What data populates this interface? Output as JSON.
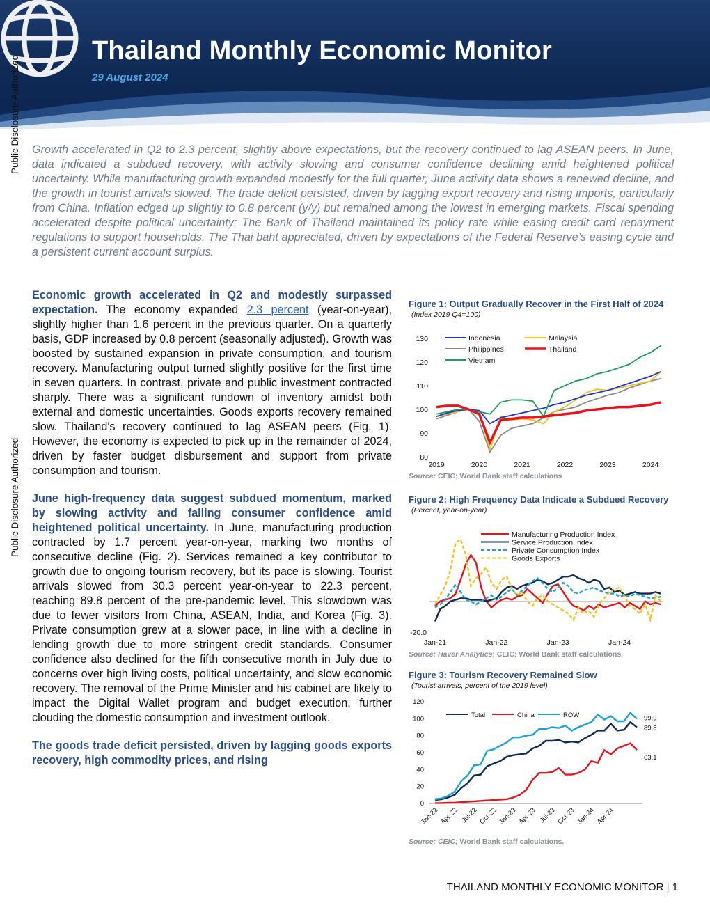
{
  "header": {
    "title": "Thailand Monthly Economic Monitor",
    "date": "29 August 2024"
  },
  "side_label": "Public Disclosure Authorized",
  "summary": "Growth accelerated in Q2 to 2.3 percent, slightly above expectations, but the recovery continued to lag ASEAN peers. In June, data indicated a subdued recovery, with activity slowing and consumer confidence declining amid heightened political uncertainty. While manufacturing growth expanded modestly for the full quarter, June activity data shows a renewed decline, and the growth in tourist arrivals slowed. The trade deficit persisted, driven by lagging export recovery and rising imports, particularly from China. Inflation edged up slightly to 0.8 percent (y/y) but remained among the lowest in emerging markets. Fiscal spending accelerated despite political uncertainty; The Bank of Thailand maintained its policy rate while easing credit card repayment regulations to support households. The Thai baht appreciated, driven by expectations of the Federal Reserve’s easing cycle and a persistent current account surplus.",
  "paragraphs": {
    "p1_lead": "Economic growth accelerated in Q2 and modestly surpassed expectation.",
    "p1_a": " The economy expanded ",
    "p1_link": "2.3 percent",
    "p1_b": " (year-on-year), slightly higher than 1.6 percent in the previous quarter. On a quarterly basis, GDP increased by 0.8 percent (seasonally adjusted). Growth was boosted by sustained expansion in private consumption, and tourism recovery. Manufacturing output turned slightly positive for the first time in seven quarters. In contrast, private and public investment contracted sharply. There was a significant rundown of inventory amidst both external and domestic uncertainties. Goods exports recovery remained slow. Thailand's recovery continued to lag ASEAN peers (Fig. 1). However, the economy is expected to pick up in the remainder of 2024, driven by faster budget disbursement and support from private consumption and tourism.",
    "p2_lead": "June high-frequency data suggest subdued momentum, marked by slowing activity and falling consumer confidence amid heightened political uncertainty.",
    "p2_body": " In June, manufacturing production contracted by 1.7 percent year-on-year, marking two months of consecutive decline (Fig. 2). Services remained a key contributor to growth due to ongoing tourism recovery, but its pace is slowing. Tourist arrivals slowed from 30.3 percent year-on-year to 22.3 percent, reaching 89.8 percent of the pre-pandemic level. This slowdown was due to fewer visitors from China, ASEAN, India, and Korea (Fig. 3). Private consumption grew at a slower pace, in line with a decline in lending growth due to more stringent credit standards. Consumer confidence also declined for the fifth consecutive month in July due to concerns over high living costs, political uncertainty, and slow economic recovery. The removal of the Prime Minister and his cabinet are likely to impact the Digital Wallet program and budget execution, further clouding the domestic consumption and investment outlook.",
    "p3_lead": "The goods trade deficit persisted, driven by lagging goods exports recovery, high commodity prices, and rising"
  },
  "figures": {
    "fig1": {
      "title": "Figure 1: Output Gradually Recover in the First Half of 2024",
      "subtitle": "(Index 2019 Q4=100)",
      "source_label": "Source:",
      "source_text": " CEIC; World Bank staff calculations"
    },
    "fig2": {
      "title": "Figure 2: High Frequency Data Indicate a Subdued Recovery",
      "subtitle": "(Percent, year-on-year)",
      "source_label": "Source: Haver Analytics",
      "source_text": "; CEIC; World Bank staff calculations."
    },
    "fig3": {
      "title": "Figure 3: Tourism Recovery Remained Slow",
      "subtitle": "(Tourist arrivals, percent of the 2019 level)",
      "source_label": "Source: CEIC;",
      "source_text": " World Bank staff calculations."
    }
  },
  "footer": {
    "text": "THAILAND MONTHLY ECONOMIC MONITOR | 1"
  },
  "colors": {
    "navy": "#0f2a55",
    "lead_blue": "#2a4d8f",
    "indonesia": "#1f2fd0",
    "malaysia": "#f2c21a",
    "philippines": "#8a8a8a",
    "thailand": "#e8141c",
    "vietnam": "#1aa05a"
  },
  "chart_data": [
    {
      "type": "line",
      "id": "fig1",
      "xlabel": "",
      "ylabel": "",
      "x": [
        2019.0,
        2019.25,
        2019.5,
        2019.75,
        2020.0,
        2020.25,
        2020.5,
        2020.75,
        2021.0,
        2021.25,
        2021.5,
        2021.75,
        2022.0,
        2022.25,
        2022.5,
        2022.75,
        2023.0,
        2023.25,
        2023.5,
        2023.75,
        2024.0,
        2024.25
      ],
      "x_ticks": [
        2019,
        2020,
        2021,
        2022,
        2023,
        2024
      ],
      "x_tick_labels": [
        "2019",
        "2020",
        "2021",
        "2022",
        "2023",
        "2024"
      ],
      "ylim": [
        80,
        130
      ],
      "y_ticks": [
        80,
        90,
        100,
        110,
        120,
        130
      ],
      "legend_placement": "top",
      "series": [
        {
          "name": "Indonesia",
          "color": "#1f2fd0",
          "values": [
            97,
            98.5,
            99.5,
            100,
            99.5,
            94,
            96.5,
            97.5,
            98.5,
            99.5,
            100.5,
            102,
            103,
            104.5,
            106,
            107,
            108,
            109.5,
            111,
            112.5,
            114,
            116
          ]
        },
        {
          "name": "Malaysia",
          "color": "#f2c21a",
          "values": [
            97,
            98,
            99,
            100,
            99,
            83,
            97,
            95.5,
            96,
            95.5,
            94,
            99,
            101,
            104,
            107,
            108.5,
            108,
            109,
            110,
            111,
            112,
            116
          ]
        },
        {
          "name": "Philippines",
          "color": "#8a8a8a",
          "values": [
            96,
            97.5,
            99,
            100,
            95,
            82,
            89,
            92,
            93,
            94,
            96.5,
            99,
            100,
            101,
            103,
            104.5,
            106,
            107,
            109,
            110.5,
            112,
            113
          ]
        },
        {
          "name": "Thailand",
          "color": "#e8141c",
          "values": [
            101,
            101.5,
            101.5,
            100,
            98,
            86,
            95.5,
            96,
            96.5,
            96.5,
            97,
            97.5,
            98,
            98.5,
            99.5,
            100,
            100.5,
            101,
            101,
            101.5,
            102,
            103
          ]
        },
        {
          "name": "Vietnam",
          "color": "#1aa05a",
          "values": [
            98,
            99,
            100,
            100,
            99,
            98,
            103,
            104,
            104,
            103.5,
            97,
            108,
            110,
            112,
            113,
            115,
            116,
            117.5,
            119,
            122,
            124,
            127
          ]
        }
      ]
    },
    {
      "type": "line",
      "id": "fig2",
      "xlabel": "",
      "ylabel": "",
      "x_ticks": [
        "Jan-21",
        "Jan-22",
        "Jan-23",
        "Jan-24"
      ],
      "y_ticks_labeled": [
        -20.0
      ],
      "ylim": [
        -20,
        45
      ],
      "legend_placement": "top",
      "series": [
        {
          "name": "Manufacturing Production Index",
          "color": "#e8141c",
          "dash": "",
          "values": [
            -3,
            0,
            1,
            2,
            5,
            14,
            24,
            30,
            25,
            9,
            0,
            -4,
            -1,
            1,
            2,
            1,
            3,
            4,
            8,
            5,
            2,
            -1,
            5,
            10,
            11,
            6,
            1,
            -3,
            -4,
            -6,
            -3,
            -5,
            -2,
            -4,
            -3,
            -2,
            -1,
            -4,
            -1,
            -3,
            -5,
            0,
            -2,
            -1,
            -2
          ]
        },
        {
          "name": "Service Production Index",
          "color": "#0f2a55",
          "dash": "",
          "values": [
            -13,
            -5,
            -3,
            0,
            1,
            2,
            2,
            1,
            1,
            1,
            0,
            1,
            2,
            6,
            9,
            10,
            8,
            10,
            11,
            12,
            14,
            13,
            11,
            12,
            14,
            16,
            16,
            17,
            15,
            14,
            12,
            14,
            13,
            8,
            9,
            6,
            7,
            4,
            5,
            6,
            5,
            5,
            5,
            6,
            5
          ]
        },
        {
          "name": "Private Consumption Index",
          "color": "#1aa2d9",
          "dash": "5,3",
          "values": [
            -4,
            -2,
            1,
            6,
            11,
            6,
            1,
            0,
            -2,
            0,
            2,
            4,
            1,
            3,
            6,
            8,
            4,
            7,
            10,
            13,
            15,
            12,
            8,
            6,
            9,
            12,
            10,
            6,
            5,
            7,
            8,
            9,
            7,
            6,
            5,
            5,
            3,
            4,
            3,
            5,
            4,
            3,
            2,
            2,
            3
          ]
        },
        {
          "name": "Goods Exports",
          "color": "#f2c21a",
          "dash": "5,3",
          "values": [
            -2,
            4,
            10,
            20,
            38,
            40,
            30,
            10,
            15,
            18,
            22,
            12,
            8,
            14,
            16,
            8,
            4,
            6,
            0,
            -3,
            2,
            4,
            0,
            -2,
            -4,
            -6,
            -8,
            -12,
            -4,
            -8,
            -6,
            -10,
            -2,
            2,
            6,
            8,
            9,
            3,
            -3,
            -5,
            -8,
            -2,
            -12,
            4,
            0
          ]
        }
      ]
    },
    {
      "type": "line",
      "id": "fig3",
      "xlabel": "",
      "ylabel": "",
      "x_ticks": [
        "Jan-22",
        "Apr-22",
        "Jul-22",
        "Oct-22",
        "Jan-23",
        "Apr-23",
        "Jul-23",
        "Oct-23",
        "Jan-24",
        "Apr-24"
      ],
      "ylim": [
        0,
        120
      ],
      "y_ticks": [
        0,
        20,
        40,
        60,
        80,
        100,
        120
      ],
      "legend_placement": "top-left",
      "end_labels": [
        "99.9",
        "89.8",
        "63.1"
      ],
      "series": [
        {
          "name": "Total",
          "color": "#0f2a55",
          "values": [
            4,
            5,
            7,
            10,
            18,
            24,
            33,
            34,
            44,
            47,
            50,
            55,
            57,
            58,
            59,
            65,
            68,
            74,
            74,
            75,
            72,
            73,
            72,
            77,
            81,
            86,
            86,
            94,
            86,
            87,
            96,
            89.8
          ]
        },
        {
          "name": "China",
          "color": "#e8141c",
          "values": [
            0.5,
            0.5,
            0.8,
            1,
            1.5,
            2,
            2.5,
            3,
            3.5,
            4,
            4.5,
            5,
            7,
            10,
            16,
            28,
            36,
            36,
            37,
            42,
            34,
            34,
            36,
            40,
            50,
            48,
            63,
            58,
            65,
            68,
            71,
            63.1
          ]
        },
        {
          "name": "ROW",
          "color": "#1aa2d9",
          "values": [
            5,
            6,
            9,
            14,
            26,
            33,
            45,
            46,
            62,
            64,
            68,
            72,
            78,
            78,
            80,
            81,
            88,
            88,
            90,
            89,
            92,
            86,
            90,
            93,
            96,
            105,
            99,
            103,
            97,
            97,
            107,
            99.9
          ]
        }
      ]
    }
  ]
}
